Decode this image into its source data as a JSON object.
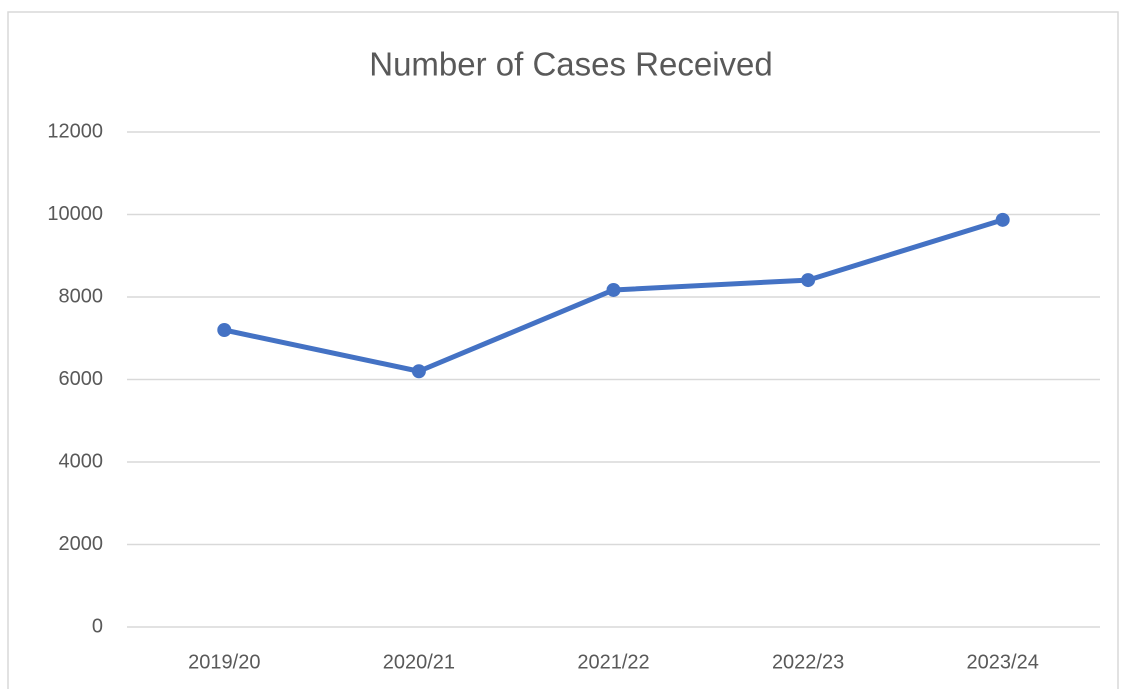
{
  "chart_data": {
    "type": "line",
    "title": "Number of Cases Received",
    "categories": [
      "2019/20",
      "2020/21",
      "2021/22",
      "2022/23",
      "2023/24"
    ],
    "series": [
      {
        "name": "Number of Cases Received",
        "color": "#4472c4",
        "values": [
          7200,
          6200,
          8170,
          8410,
          9870
        ]
      }
    ],
    "ylim": [
      0,
      12000
    ],
    "yticks": [
      0,
      2000,
      4000,
      6000,
      8000,
      10000,
      12000
    ],
    "grid": true
  }
}
